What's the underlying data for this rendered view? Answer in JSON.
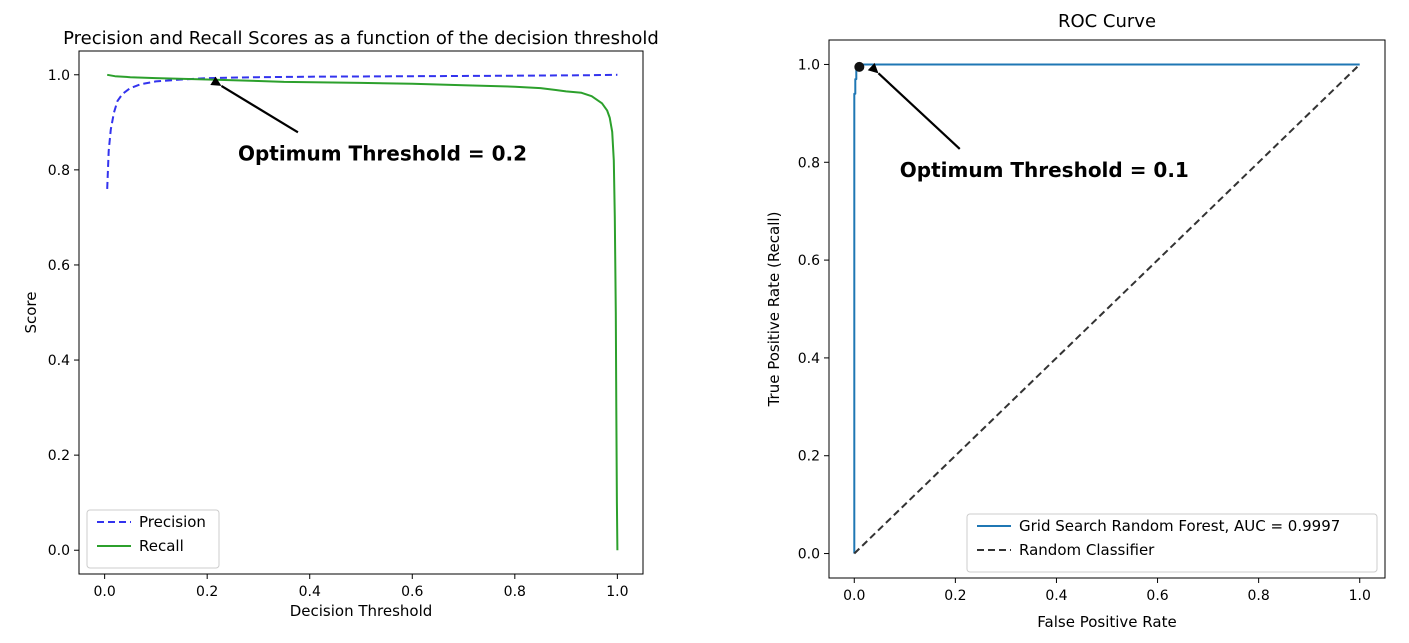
{
  "chart_data": [
    {
      "type": "line",
      "title": "Precision and Recall Scores as a function of the decision threshold",
      "xlabel": "Decision Threshold",
      "ylabel": "Score",
      "xlim": [
        -0.05,
        1.05
      ],
      "ylim": [
        -0.05,
        1.05
      ],
      "xticks": [
        "0.0",
        "0.2",
        "0.4",
        "0.6",
        "0.8",
        "1.0"
      ],
      "yticks": [
        "0.0",
        "0.2",
        "0.4",
        "0.6",
        "0.8",
        "1.0"
      ],
      "grid": false,
      "legend_position": "lower-left",
      "series": [
        {
          "name": "Precision",
          "style": "dashed",
          "color": "#3333ee",
          "x": [
            0.005,
            0.008,
            0.012,
            0.018,
            0.025,
            0.035,
            0.05,
            0.07,
            0.1,
            0.15,
            0.2,
            0.3,
            0.4,
            0.6,
            0.8,
            0.95,
            1.0
          ],
          "y": [
            0.76,
            0.84,
            0.885,
            0.92,
            0.945,
            0.96,
            0.972,
            0.98,
            0.986,
            0.99,
            0.993,
            0.995,
            0.996,
            0.997,
            0.998,
            0.999,
            1.0
          ]
        },
        {
          "name": "Recall",
          "style": "solid",
          "color": "#2ca02c",
          "x": [
            0.005,
            0.02,
            0.05,
            0.1,
            0.2,
            0.3,
            0.35,
            0.5,
            0.6,
            0.7,
            0.8,
            0.85,
            0.88,
            0.9,
            0.93,
            0.95,
            0.97,
            0.98,
            0.985,
            0.99,
            0.993,
            0.995,
            0.997,
            0.998,
            0.999,
            1.0
          ],
          "y": [
            1.0,
            0.997,
            0.995,
            0.993,
            0.99,
            0.987,
            0.985,
            0.983,
            0.981,
            0.978,
            0.975,
            0.972,
            0.968,
            0.965,
            0.962,
            0.955,
            0.94,
            0.925,
            0.91,
            0.88,
            0.82,
            0.7,
            0.5,
            0.3,
            0.1,
            0.0
          ]
        }
      ],
      "annotation": {
        "text": "Optimum Threshold = 0.2",
        "point": [
          0.22,
          0.985
        ],
        "text_at": [
          0.26,
          0.82
        ]
      }
    },
    {
      "type": "line",
      "title": "ROC Curve",
      "xlabel": "False Positive Rate",
      "ylabel": "True Positive Rate (Recall)",
      "xlim": [
        -0.05,
        1.05
      ],
      "ylim": [
        -0.05,
        1.05
      ],
      "xticks": [
        "0.0",
        "0.2",
        "0.4",
        "0.6",
        "0.8",
        "1.0"
      ],
      "yticks": [
        "0.0",
        "0.2",
        "0.4",
        "0.6",
        "0.8",
        "1.0"
      ],
      "grid": false,
      "legend_position": "lower-right",
      "series": [
        {
          "name": "Grid Search Random Forest, AUC = 0.9997",
          "style": "solid",
          "color": "#1f77b4",
          "x": [
            0.0,
            0.0,
            0.002,
            0.002,
            0.004,
            0.004,
            0.008,
            1.0
          ],
          "y": [
            0.0,
            0.94,
            0.94,
            0.97,
            0.97,
            0.995,
            1.0,
            1.0
          ]
        },
        {
          "name": "Random Classifier",
          "style": "dashed",
          "color": "#333333",
          "x": [
            0.0,
            1.0
          ],
          "y": [
            0.0,
            1.0
          ]
        }
      ],
      "marker": {
        "x": 0.01,
        "y": 0.995,
        "color": "#111111"
      },
      "annotation": {
        "text": "Optimum Threshold = 0.1",
        "point": [
          0.04,
          0.99
        ],
        "text_at": [
          0.09,
          0.77
        ]
      }
    }
  ]
}
